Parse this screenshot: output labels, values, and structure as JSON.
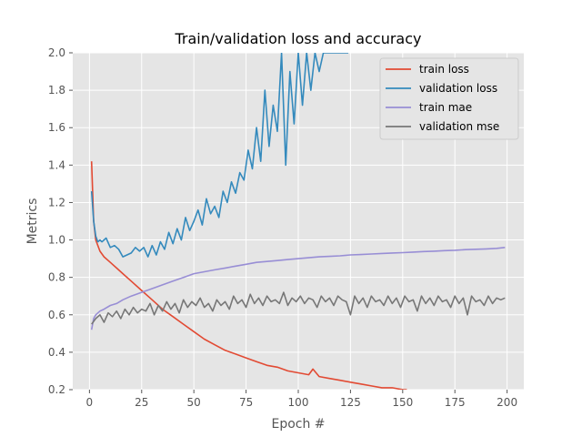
{
  "chart_data": {
    "type": "line",
    "title": "Train/validation loss and accuracy",
    "xlabel": "Epoch #",
    "ylabel": "Metrics",
    "xlim": [
      -8,
      208
    ],
    "ylim": [
      0.2,
      2.0
    ],
    "xticks": [
      0,
      25,
      50,
      75,
      100,
      125,
      150,
      175,
      200
    ],
    "yticks": [
      0.2,
      0.4,
      0.6,
      0.8,
      1.0,
      1.2,
      1.4,
      1.6,
      1.8,
      2.0
    ],
    "xtick_labels": [
      "0",
      "25",
      "50",
      "75",
      "100",
      "125",
      "150",
      "175",
      "200"
    ],
    "ytick_labels": [
      "0.2",
      "0.4",
      "0.6",
      "0.8",
      "1.0",
      "1.2",
      "1.4",
      "1.6",
      "1.8",
      "2.0"
    ],
    "grid": true,
    "legend_position": "top-right",
    "series": [
      {
        "name": "train loss",
        "color": "#E24A33",
        "x": [
          1,
          2,
          3,
          4,
          5,
          7,
          10,
          13,
          16,
          20,
          25,
          30,
          35,
          40,
          45,
          50,
          55,
          60,
          65,
          70,
          75,
          80,
          85,
          90,
          95,
          100,
          105,
          107,
          110,
          115,
          120,
          125,
          130,
          135,
          140,
          145,
          150,
          152
        ],
        "y": [
          1.42,
          1.1,
          1.0,
          0.97,
          0.94,
          0.91,
          0.88,
          0.85,
          0.82,
          0.78,
          0.73,
          0.68,
          0.63,
          0.59,
          0.55,
          0.51,
          0.47,
          0.44,
          0.41,
          0.39,
          0.37,
          0.35,
          0.33,
          0.32,
          0.3,
          0.29,
          0.28,
          0.31,
          0.27,
          0.26,
          0.25,
          0.24,
          0.23,
          0.22,
          0.21,
          0.21,
          0.2,
          0.2
        ]
      },
      {
        "name": "validation loss",
        "color": "#348ABD",
        "x": [
          1,
          2,
          3,
          4,
          5,
          6,
          8,
          10,
          12,
          14,
          16,
          18,
          20,
          22,
          24,
          26,
          28,
          30,
          32,
          34,
          36,
          38,
          40,
          42,
          44,
          46,
          48,
          50,
          52,
          54,
          56,
          58,
          60,
          62,
          64,
          66,
          68,
          70,
          72,
          74,
          76,
          78,
          80,
          82,
          84,
          86,
          88,
          90,
          92,
          94,
          96,
          98,
          100,
          102,
          104,
          106,
          108,
          110,
          112,
          124
        ],
        "y": [
          1.26,
          1.1,
          1.02,
          0.99,
          1.0,
          0.99,
          1.01,
          0.96,
          0.97,
          0.95,
          0.91,
          0.92,
          0.93,
          0.96,
          0.94,
          0.96,
          0.91,
          0.97,
          0.92,
          0.99,
          0.95,
          1.04,
          0.98,
          1.06,
          1.0,
          1.12,
          1.05,
          1.1,
          1.16,
          1.08,
          1.22,
          1.14,
          1.18,
          1.12,
          1.26,
          1.2,
          1.31,
          1.25,
          1.36,
          1.32,
          1.48,
          1.38,
          1.6,
          1.42,
          1.8,
          1.5,
          1.72,
          1.58,
          2.0,
          1.4,
          1.9,
          1.62,
          2.0,
          1.72,
          2.0,
          1.8,
          2.0,
          1.9,
          2.0,
          2.0
        ]
      },
      {
        "name": "train mae",
        "color": "#988ED5",
        "x": [
          1,
          2,
          3,
          5,
          7,
          10,
          13,
          16,
          20,
          25,
          30,
          35,
          40,
          45,
          50,
          55,
          60,
          65,
          70,
          75,
          80,
          85,
          90,
          95,
          100,
          105,
          110,
          115,
          120,
          125,
          130,
          135,
          140,
          145,
          150,
          155,
          160,
          165,
          170,
          175,
          180,
          185,
          190,
          195,
          199
        ],
        "y": [
          0.52,
          0.58,
          0.6,
          0.62,
          0.63,
          0.65,
          0.66,
          0.68,
          0.7,
          0.72,
          0.74,
          0.76,
          0.78,
          0.8,
          0.82,
          0.83,
          0.84,
          0.85,
          0.86,
          0.87,
          0.88,
          0.885,
          0.89,
          0.895,
          0.9,
          0.905,
          0.91,
          0.912,
          0.915,
          0.92,
          0.922,
          0.925,
          0.928,
          0.93,
          0.932,
          0.935,
          0.938,
          0.94,
          0.943,
          0.945,
          0.948,
          0.95,
          0.952,
          0.955,
          0.96
        ]
      },
      {
        "name": "validation mse",
        "color": "#777777",
        "x": [
          1,
          3,
          5,
          7,
          9,
          11,
          13,
          15,
          17,
          19,
          21,
          23,
          25,
          27,
          29,
          31,
          33,
          35,
          37,
          39,
          41,
          43,
          45,
          47,
          49,
          51,
          53,
          55,
          57,
          59,
          61,
          63,
          65,
          67,
          69,
          71,
          73,
          75,
          77,
          79,
          81,
          83,
          85,
          87,
          89,
          91,
          93,
          95,
          97,
          99,
          101,
          103,
          105,
          107,
          109,
          111,
          113,
          115,
          117,
          119,
          121,
          123,
          125,
          127,
          129,
          131,
          133,
          135,
          137,
          139,
          141,
          143,
          145,
          147,
          149,
          151,
          153,
          155,
          157,
          159,
          161,
          163,
          165,
          167,
          169,
          171,
          173,
          175,
          177,
          179,
          181,
          183,
          185,
          187,
          189,
          191,
          193,
          195,
          197,
          199
        ],
        "y": [
          0.55,
          0.58,
          0.6,
          0.56,
          0.61,
          0.59,
          0.62,
          0.58,
          0.63,
          0.6,
          0.64,
          0.61,
          0.63,
          0.62,
          0.66,
          0.6,
          0.65,
          0.62,
          0.67,
          0.63,
          0.66,
          0.61,
          0.68,
          0.64,
          0.67,
          0.65,
          0.69,
          0.64,
          0.66,
          0.62,
          0.68,
          0.65,
          0.67,
          0.63,
          0.7,
          0.66,
          0.68,
          0.64,
          0.71,
          0.66,
          0.69,
          0.65,
          0.7,
          0.67,
          0.68,
          0.66,
          0.72,
          0.65,
          0.69,
          0.67,
          0.7,
          0.66,
          0.69,
          0.68,
          0.64,
          0.7,
          0.67,
          0.69,
          0.65,
          0.7,
          0.68,
          0.67,
          0.6,
          0.7,
          0.66,
          0.69,
          0.64,
          0.7,
          0.67,
          0.68,
          0.65,
          0.7,
          0.66,
          0.69,
          0.64,
          0.7,
          0.67,
          0.68,
          0.62,
          0.7,
          0.66,
          0.69,
          0.65,
          0.7,
          0.67,
          0.68,
          0.64,
          0.7,
          0.66,
          0.69,
          0.6,
          0.7,
          0.67,
          0.68,
          0.65,
          0.7,
          0.66,
          0.69,
          0.68,
          0.69
        ]
      }
    ]
  }
}
